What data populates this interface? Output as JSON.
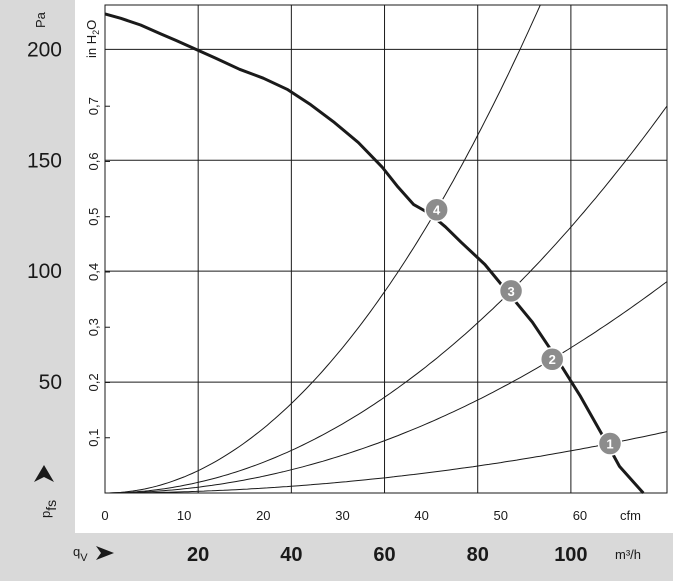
{
  "chart_data": {
    "type": "line",
    "pressure_axis": {
      "unit": "Pa",
      "ticks": [
        50,
        100,
        150,
        200
      ],
      "range": [
        0,
        220
      ],
      "label_main": "p",
      "label_sub": "fs"
    },
    "inh2o_axis": {
      "unit": "in H",
      "unit_sub": "2",
      "unit_end": "O",
      "ticks": [
        "0,1",
        "0,2",
        "0,3",
        "0,4",
        "0,5",
        "0,6",
        "0,7"
      ],
      "tick_values": [
        0.1,
        0.2,
        0.3,
        0.4,
        0.5,
        0.6,
        0.7
      ]
    },
    "cfm_axis": {
      "unit": "cfm",
      "ticks": [
        "0",
        "10",
        "20",
        "30",
        "40",
        "50",
        "60"
      ],
      "tick_values": [
        0,
        10,
        20,
        30,
        40,
        50,
        60
      ],
      "range": [
        0,
        71
      ]
    },
    "flow_axis": {
      "unit": "m³/h",
      "label_main": "q",
      "label_sub": "V",
      "ticks": [
        "20",
        "40",
        "60",
        "80",
        "100"
      ],
      "tick_values": [
        20,
        40,
        60,
        80,
        100
      ]
    },
    "grid": true,
    "fan_curve": [
      [
        0,
        216
      ],
      [
        2,
        214
      ],
      [
        4.5,
        211
      ],
      [
        7,
        207
      ],
      [
        9,
        204
      ],
      [
        11.5,
        200
      ],
      [
        14,
        196
      ],
      [
        17,
        191
      ],
      [
        20,
        187
      ],
      [
        23,
        182
      ],
      [
        26,
        175
      ],
      [
        29,
        167
      ],
      [
        32,
        158
      ],
      [
        35,
        147
      ],
      [
        37,
        138
      ],
      [
        39,
        130
      ],
      [
        41,
        126
      ],
      [
        43,
        120
      ],
      [
        45,
        113
      ],
      [
        48,
        103
      ],
      [
        51,
        90
      ],
      [
        54,
        77
      ],
      [
        57,
        61
      ],
      [
        60,
        44
      ],
      [
        63,
        25
      ],
      [
        65,
        12
      ],
      [
        68,
        0
      ]
    ],
    "system_curves": [
      {
        "id": "1",
        "k": 0.00549
      },
      {
        "id": "2",
        "k": 0.01891
      },
      {
        "id": "3",
        "k": 0.03461
      },
      {
        "id": "4",
        "k": 0.07275
      }
    ],
    "operating_points": [
      {
        "label": "1",
        "cfm": 63.8,
        "pa": 22.3
      },
      {
        "label": "2",
        "cfm": 56.5,
        "pa": 60.3
      },
      {
        "label": "3",
        "cfm": 51.3,
        "pa": 91.1
      },
      {
        "label": "4",
        "cfm": 41.9,
        "pa": 127.7
      }
    ],
    "colors": {
      "panel": "#d9d9d9",
      "grid": "#1a1a1a",
      "fan_curve": "#1a1a1a",
      "system_curve": "#1a1a1a",
      "marker": "#8c8c8c",
      "marker_text": "#ffffff"
    }
  }
}
